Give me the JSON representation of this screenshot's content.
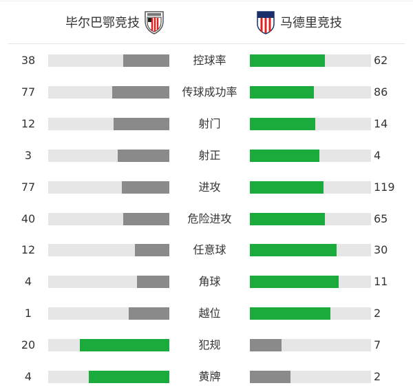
{
  "home": {
    "name": "毕尔巴鄂竞技",
    "logo": "athletic-bilbao-crest"
  },
  "away": {
    "name": "马德里竞技",
    "logo": "atletico-madrid-crest"
  },
  "colors": {
    "leader": "#1aab3c",
    "other": "#8a8a8a",
    "track": "#e6e6e6"
  },
  "stats": [
    {
      "label": "控球率",
      "home": 38,
      "away": 62
    },
    {
      "label": "传球成功率",
      "home": 77,
      "away": 86
    },
    {
      "label": "射门",
      "home": 12,
      "away": 14
    },
    {
      "label": "射正",
      "home": 3,
      "away": 4
    },
    {
      "label": "进攻",
      "home": 77,
      "away": 119
    },
    {
      "label": "危险进攻",
      "home": 40,
      "away": 65
    },
    {
      "label": "任意球",
      "home": 12,
      "away": 30
    },
    {
      "label": "角球",
      "home": 4,
      "away": 11
    },
    {
      "label": "越位",
      "home": 1,
      "away": 2
    },
    {
      "label": "犯规",
      "home": 20,
      "away": 7
    },
    {
      "label": "黄牌",
      "home": 4,
      "away": 2
    }
  ]
}
